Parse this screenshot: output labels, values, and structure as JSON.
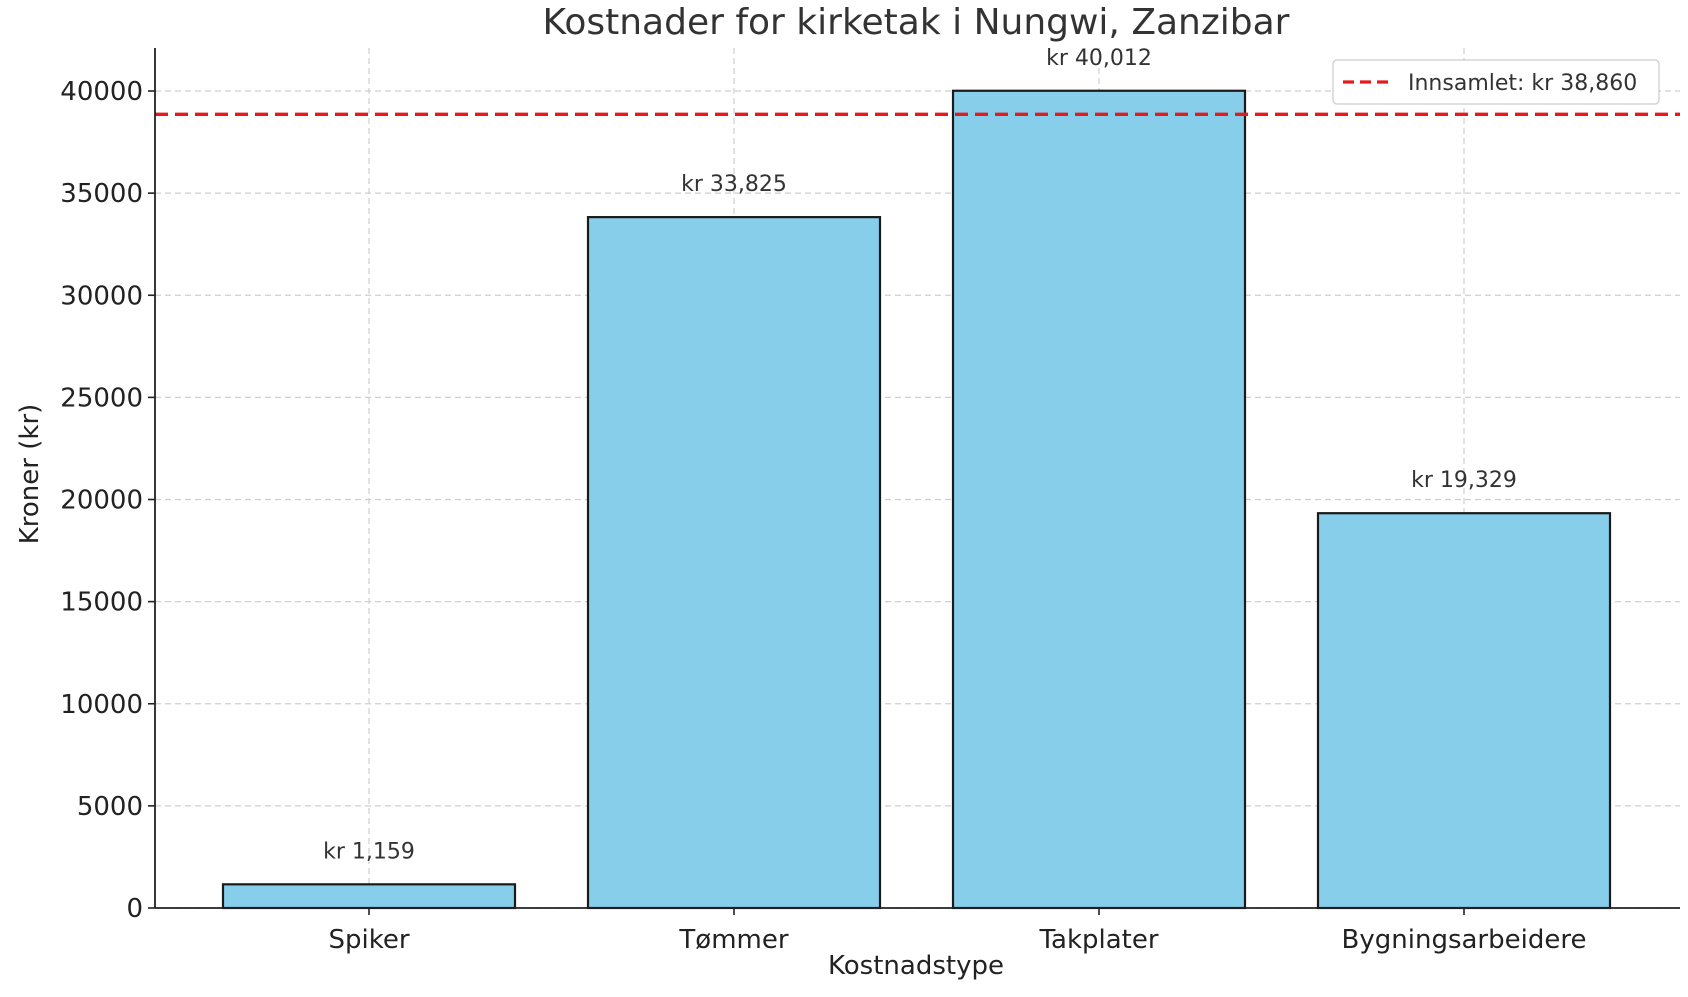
{
  "chart_data": {
    "type": "bar",
    "title": "Kostnader for kirketak i Nungwi, Zanzibar",
    "xlabel": "Kostnadstype",
    "ylabel": "Kroner (kr)",
    "categories": [
      "Spiker",
      "Tømmer",
      "Takplater",
      "Bygningsarbeidere"
    ],
    "values": [
      1159,
      33825,
      40012,
      19329
    ],
    "data_labels": [
      "kr 1,159",
      "kr 33,825",
      "kr 40,012",
      "kr 19,329"
    ],
    "ylim": [
      0,
      42000
    ],
    "yticks": [
      0,
      5000,
      10000,
      15000,
      20000,
      25000,
      30000,
      35000,
      40000
    ],
    "grid": true,
    "bar_color": "#87CEEB",
    "reference_line": {
      "label": "Innsamlet: kr 38,860",
      "value": 38860,
      "color": "#E41A1C",
      "style": "dashed"
    },
    "legend_position": "top-right"
  }
}
